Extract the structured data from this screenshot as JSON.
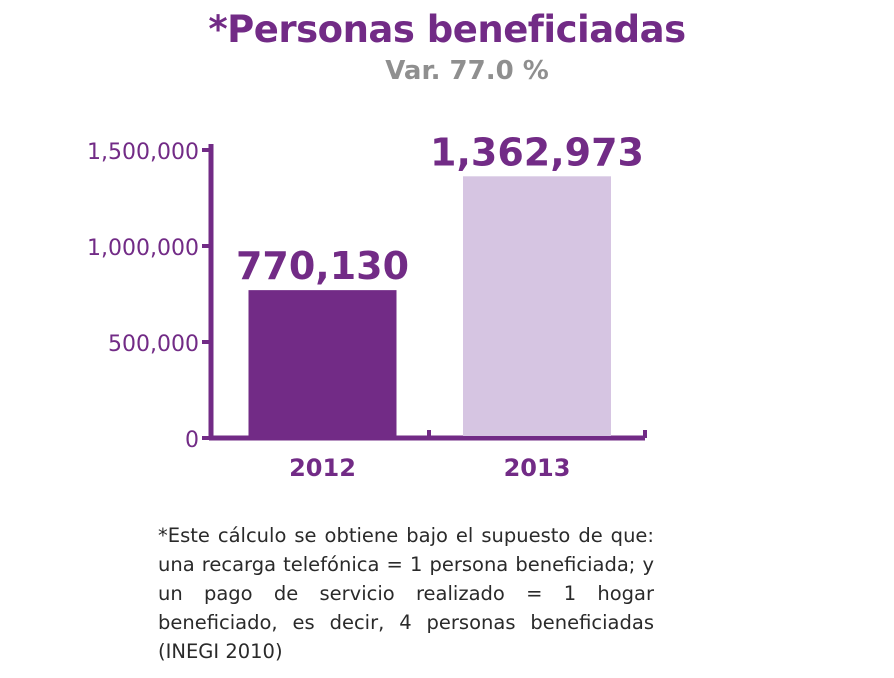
{
  "chart_data": {
    "type": "bar",
    "title": "*Personas beneficiadas",
    "subtitle": "Var. 77.0 %",
    "categories": [
      "2012",
      "2013"
    ],
    "values": [
      770130,
      1362973
    ],
    "value_labels": [
      "770,130",
      "1,362,973"
    ],
    "ylim": [
      0,
      1500000
    ],
    "yticks": [
      0,
      500000,
      1000000,
      1500000
    ],
    "ytick_labels": [
      "0",
      "500,000",
      "1,000,000",
      "1,500,000"
    ],
    "grid": false,
    "colors": {
      "bar_2012": "#722B86",
      "bar_2013": "#D6C5E2",
      "axis": "#722B86",
      "label": "#722B86",
      "subtitle": "#8f8f8f"
    }
  },
  "footnote": "*Este cálculo se obtiene bajo el supuesto de que: una recarga telefónica = 1 persona beneficiada; y un pago de servicio realizado = 1 hogar beneficiado, es decir, 4 personas beneficiadas (INEGI 2010)"
}
